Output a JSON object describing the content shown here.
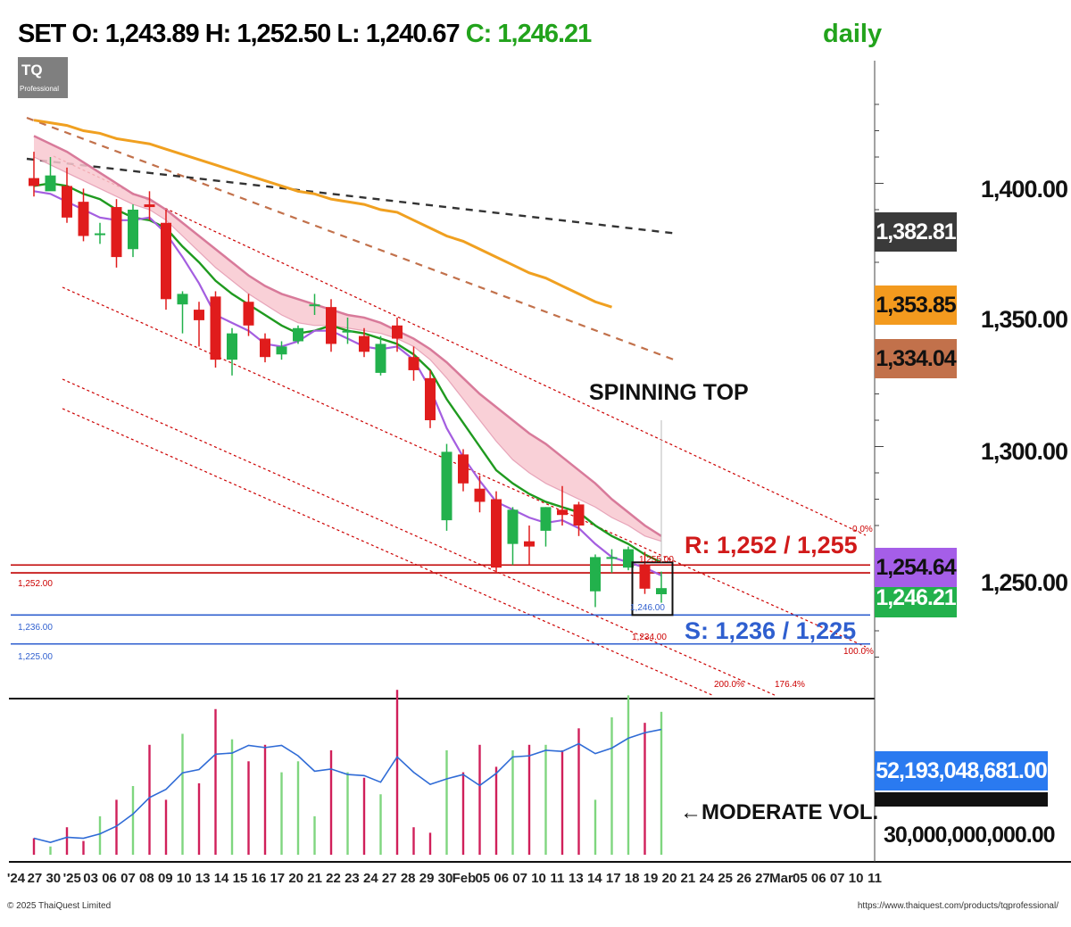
{
  "header": {
    "symbol": "SET",
    "o_label": "O:",
    "open": "1,243.89",
    "h_label": "H:",
    "high": "1,252.50",
    "l_label": "L:",
    "low": "1,240.67",
    "c_label": "C:",
    "close": "1,246.21",
    "timeframe": "daily"
  },
  "logo": {
    "text": "TQ",
    "sub": "Professional"
  },
  "price_axis": {
    "labels": [
      "1,400.00",
      "1,350.00",
      "1,300.00",
      "1,250.00"
    ]
  },
  "price_tags": [
    {
      "text": "1,382.81",
      "bg": "#3a3a3a",
      "fg": "#ffffff"
    },
    {
      "text": "1,353.85",
      "bg": "#f39a1e",
      "fg": "#111111"
    },
    {
      "text": "1,334.04",
      "bg": "#c2714b",
      "fg": "#111111"
    },
    {
      "text": "1,254.64",
      "bg": "#a55ee8",
      "fg": "#111111"
    },
    {
      "text": "1,246.21",
      "bg": "#22b14c",
      "fg": "#ffffff"
    }
  ],
  "volume_tags": {
    "last": "52,193,048,681.00",
    "level": "30,000,000,000.00"
  },
  "annotations": {
    "pattern": "SPINNING TOP",
    "resistance": "R: 1,252 / 1,255",
    "support": "S: 1,236 / 1,225",
    "volume_note": "MODERATE VOL."
  },
  "level_labels": {
    "r1": "1,252.00",
    "s1": "1,236.00",
    "s2": "1,225.00",
    "mid": "1,246.00",
    "mid2": "1,255.00",
    "low2": "1,234.00"
  },
  "fib_labels": {
    "f0": "0.0%",
    "f100": "100.0%",
    "f200": "200.0%",
    "f176": "176.4%"
  },
  "x_axis": {
    "labels": [
      "'24",
      "27",
      "30",
      "'25",
      "03",
      "06",
      "07",
      "08",
      "09",
      "10",
      "13",
      "14",
      "15",
      "16",
      "17",
      "20",
      "21",
      "22",
      "23",
      "24",
      "27",
      "28",
      "29",
      "30",
      "Feb",
      "05",
      "06",
      "07",
      "10",
      "11",
      "13",
      "14",
      "17",
      "18",
      "19",
      "20",
      "21",
      "24",
      "25",
      "26",
      "27",
      "Mar",
      "05",
      "06",
      "07",
      "10",
      "11"
    ]
  },
  "footer": {
    "left": "© 2025 ThaiQuest Limited",
    "right": "https://www.thaiquest.com/products/tqprofessional/"
  },
  "colors": {
    "up": "#22b14c",
    "down": "#e01c1c",
    "ma_green": "#1f9a1f",
    "ma_purple": "#a45ee0",
    "ma_orange": "#f0a020",
    "band_fill": "#f8c8d0",
    "band_edge": "#d87a9a",
    "resistance": "#c00000",
    "support": "#2f5fcf",
    "vol_line": "#2f6bd6"
  },
  "chart_data": [
    {
      "type": "candlestick",
      "title": "SET daily",
      "ylim": [
        1210,
        1430
      ],
      "candles": [
        {
          "o": 1402,
          "h": 1412,
          "l": 1395,
          "c": 1399
        },
        {
          "o": 1397,
          "h": 1410,
          "l": 1398,
          "c": 1403
        },
        {
          "o": 1399,
          "h": 1406,
          "l": 1385,
          "c": 1387
        },
        {
          "o": 1393,
          "h": 1398,
          "l": 1378,
          "c": 1380
        },
        {
          "o": 1381,
          "h": 1385,
          "l": 1377,
          "c": 1381
        },
        {
          "o": 1391,
          "h": 1394,
          "l": 1368,
          "c": 1372
        },
        {
          "o": 1375,
          "h": 1392,
          "l": 1372,
          "c": 1390
        },
        {
          "o": 1392,
          "h": 1397,
          "l": 1386,
          "c": 1391
        },
        {
          "o": 1385,
          "h": 1390,
          "l": 1352,
          "c": 1356
        },
        {
          "o": 1354,
          "h": 1359,
          "l": 1343,
          "c": 1358
        },
        {
          "o": 1352,
          "h": 1355,
          "l": 1338,
          "c": 1348
        },
        {
          "o": 1357,
          "h": 1359,
          "l": 1330,
          "c": 1333
        },
        {
          "o": 1333,
          "h": 1345,
          "l": 1327,
          "c": 1343
        },
        {
          "o": 1355,
          "h": 1358,
          "l": 1342,
          "c": 1346
        },
        {
          "o": 1341,
          "h": 1343,
          "l": 1332,
          "c": 1334
        },
        {
          "o": 1335,
          "h": 1340,
          "l": 1333,
          "c": 1338
        },
        {
          "o": 1340,
          "h": 1346,
          "l": 1339,
          "c": 1345
        },
        {
          "o": 1354,
          "h": 1358,
          "l": 1350,
          "c": 1354
        },
        {
          "o": 1353,
          "h": 1356,
          "l": 1336,
          "c": 1339
        },
        {
          "o": 1344,
          "h": 1349,
          "l": 1339,
          "c": 1344
        },
        {
          "o": 1342,
          "h": 1345,
          "l": 1334,
          "c": 1336
        },
        {
          "o": 1328,
          "h": 1342,
          "l": 1327,
          "c": 1339
        },
        {
          "o": 1346,
          "h": 1349,
          "l": 1336,
          "c": 1341
        },
        {
          "o": 1334,
          "h": 1338,
          "l": 1325,
          "c": 1329
        },
        {
          "o": 1326,
          "h": 1329,
          "l": 1307,
          "c": 1310
        },
        {
          "o": 1272,
          "h": 1301,
          "l": 1268,
          "c": 1298
        },
        {
          "o": 1297,
          "h": 1299,
          "l": 1283,
          "c": 1286
        },
        {
          "o": 1284,
          "h": 1289,
          "l": 1275,
          "c": 1279
        },
        {
          "o": 1280,
          "h": 1283,
          "l": 1252,
          "c": 1254
        },
        {
          "o": 1263,
          "h": 1277,
          "l": 1255,
          "c": 1276
        },
        {
          "o": 1264,
          "h": 1270,
          "l": 1255,
          "c": 1262
        },
        {
          "o": 1268,
          "h": 1277,
          "l": 1262,
          "c": 1277
        },
        {
          "o": 1276,
          "h": 1285,
          "l": 1270,
          "c": 1274
        },
        {
          "o": 1278,
          "h": 1279,
          "l": 1266,
          "c": 1270
        },
        {
          "o": 1245,
          "h": 1259,
          "l": 1239,
          "c": 1258
        },
        {
          "o": 1258,
          "h": 1261,
          "l": 1252,
          "c": 1258
        },
        {
          "o": 1254,
          "h": 1262,
          "l": 1253,
          "c": 1261
        },
        {
          "o": 1255,
          "h": 1260,
          "l": 1244,
          "c": 1246
        },
        {
          "o": 1243.89,
          "h": 1252.5,
          "l": 1240.67,
          "c": 1246.21
        }
      ],
      "ma_green": [
        1399,
        1400,
        1399,
        1396,
        1394,
        1390,
        1387,
        1386,
        1383,
        1376,
        1370,
        1363,
        1358,
        1354,
        1350,
        1346,
        1343,
        1344,
        1346,
        1344,
        1343,
        1341,
        1339,
        1335,
        1329,
        1318,
        1309,
        1300,
        1291,
        1286,
        1282,
        1279,
        1277,
        1275,
        1270,
        1266,
        1263,
        1259,
        1256
      ],
      "ma_purple": [
        1397,
        1396,
        1393,
        1390,
        1387,
        1386,
        1386,
        1387,
        1381,
        1372,
        1362,
        1350,
        1347,
        1344,
        1339,
        1338,
        1340,
        1344,
        1344,
        1341,
        1338,
        1337,
        1338,
        1333,
        1322,
        1307,
        1296,
        1287,
        1279,
        1276,
        1273,
        1271,
        1272,
        1269,
        1263,
        1258,
        1256,
        1254,
        1251
      ],
      "band_top": [
        1418,
        1415,
        1412,
        1408,
        1404,
        1400,
        1396,
        1394,
        1390,
        1385,
        1380,
        1375,
        1370,
        1365,
        1361,
        1358,
        1356,
        1354,
        1352,
        1350,
        1349,
        1347,
        1344,
        1341,
        1337,
        1332,
        1326,
        1320,
        1315,
        1310,
        1305,
        1301,
        1296,
        1291,
        1286,
        1280,
        1275,
        1270,
        1266
      ],
      "band_bottom": [
        1410,
        1407,
        1404,
        1401,
        1398,
        1395,
        1392,
        1390,
        1386,
        1380,
        1374,
        1368,
        1363,
        1358,
        1354,
        1350,
        1347,
        1346,
        1346,
        1345,
        1344,
        1343,
        1341,
        1338,
        1333,
        1326,
        1318,
        1310,
        1302,
        1295,
        1290,
        1286,
        1283,
        1280,
        1277,
        1273,
        1270,
        1266,
        1264
      ],
      "ma_orange": [
        1424,
        1423,
        1422,
        1420,
        1419,
        1417,
        1416,
        1415,
        1413,
        1411,
        1409,
        1407,
        1405,
        1403,
        1401,
        1399,
        1397,
        1396,
        1394,
        1393,
        1392,
        1390,
        1389,
        1386,
        1383,
        1380,
        1378,
        1375,
        1372,
        1369,
        1366,
        1364,
        1361,
        1358,
        1355,
        1353
      ],
      "resistance": [
        1252,
        1255
      ],
      "support": [
        1236,
        1225
      ],
      "volume_ylim": [
        0,
        75000000000
      ],
      "volume": [
        6,
        3,
        10,
        5,
        14,
        20,
        25,
        40,
        20,
        44,
        26,
        53,
        42,
        34,
        40,
        30,
        34,
        14,
        38,
        30,
        28,
        22,
        60,
        10,
        8,
        38,
        30,
        40,
        32,
        38,
        40,
        40,
        38,
        46,
        20,
        50,
        58,
        48,
        52
      ]
    }
  ]
}
